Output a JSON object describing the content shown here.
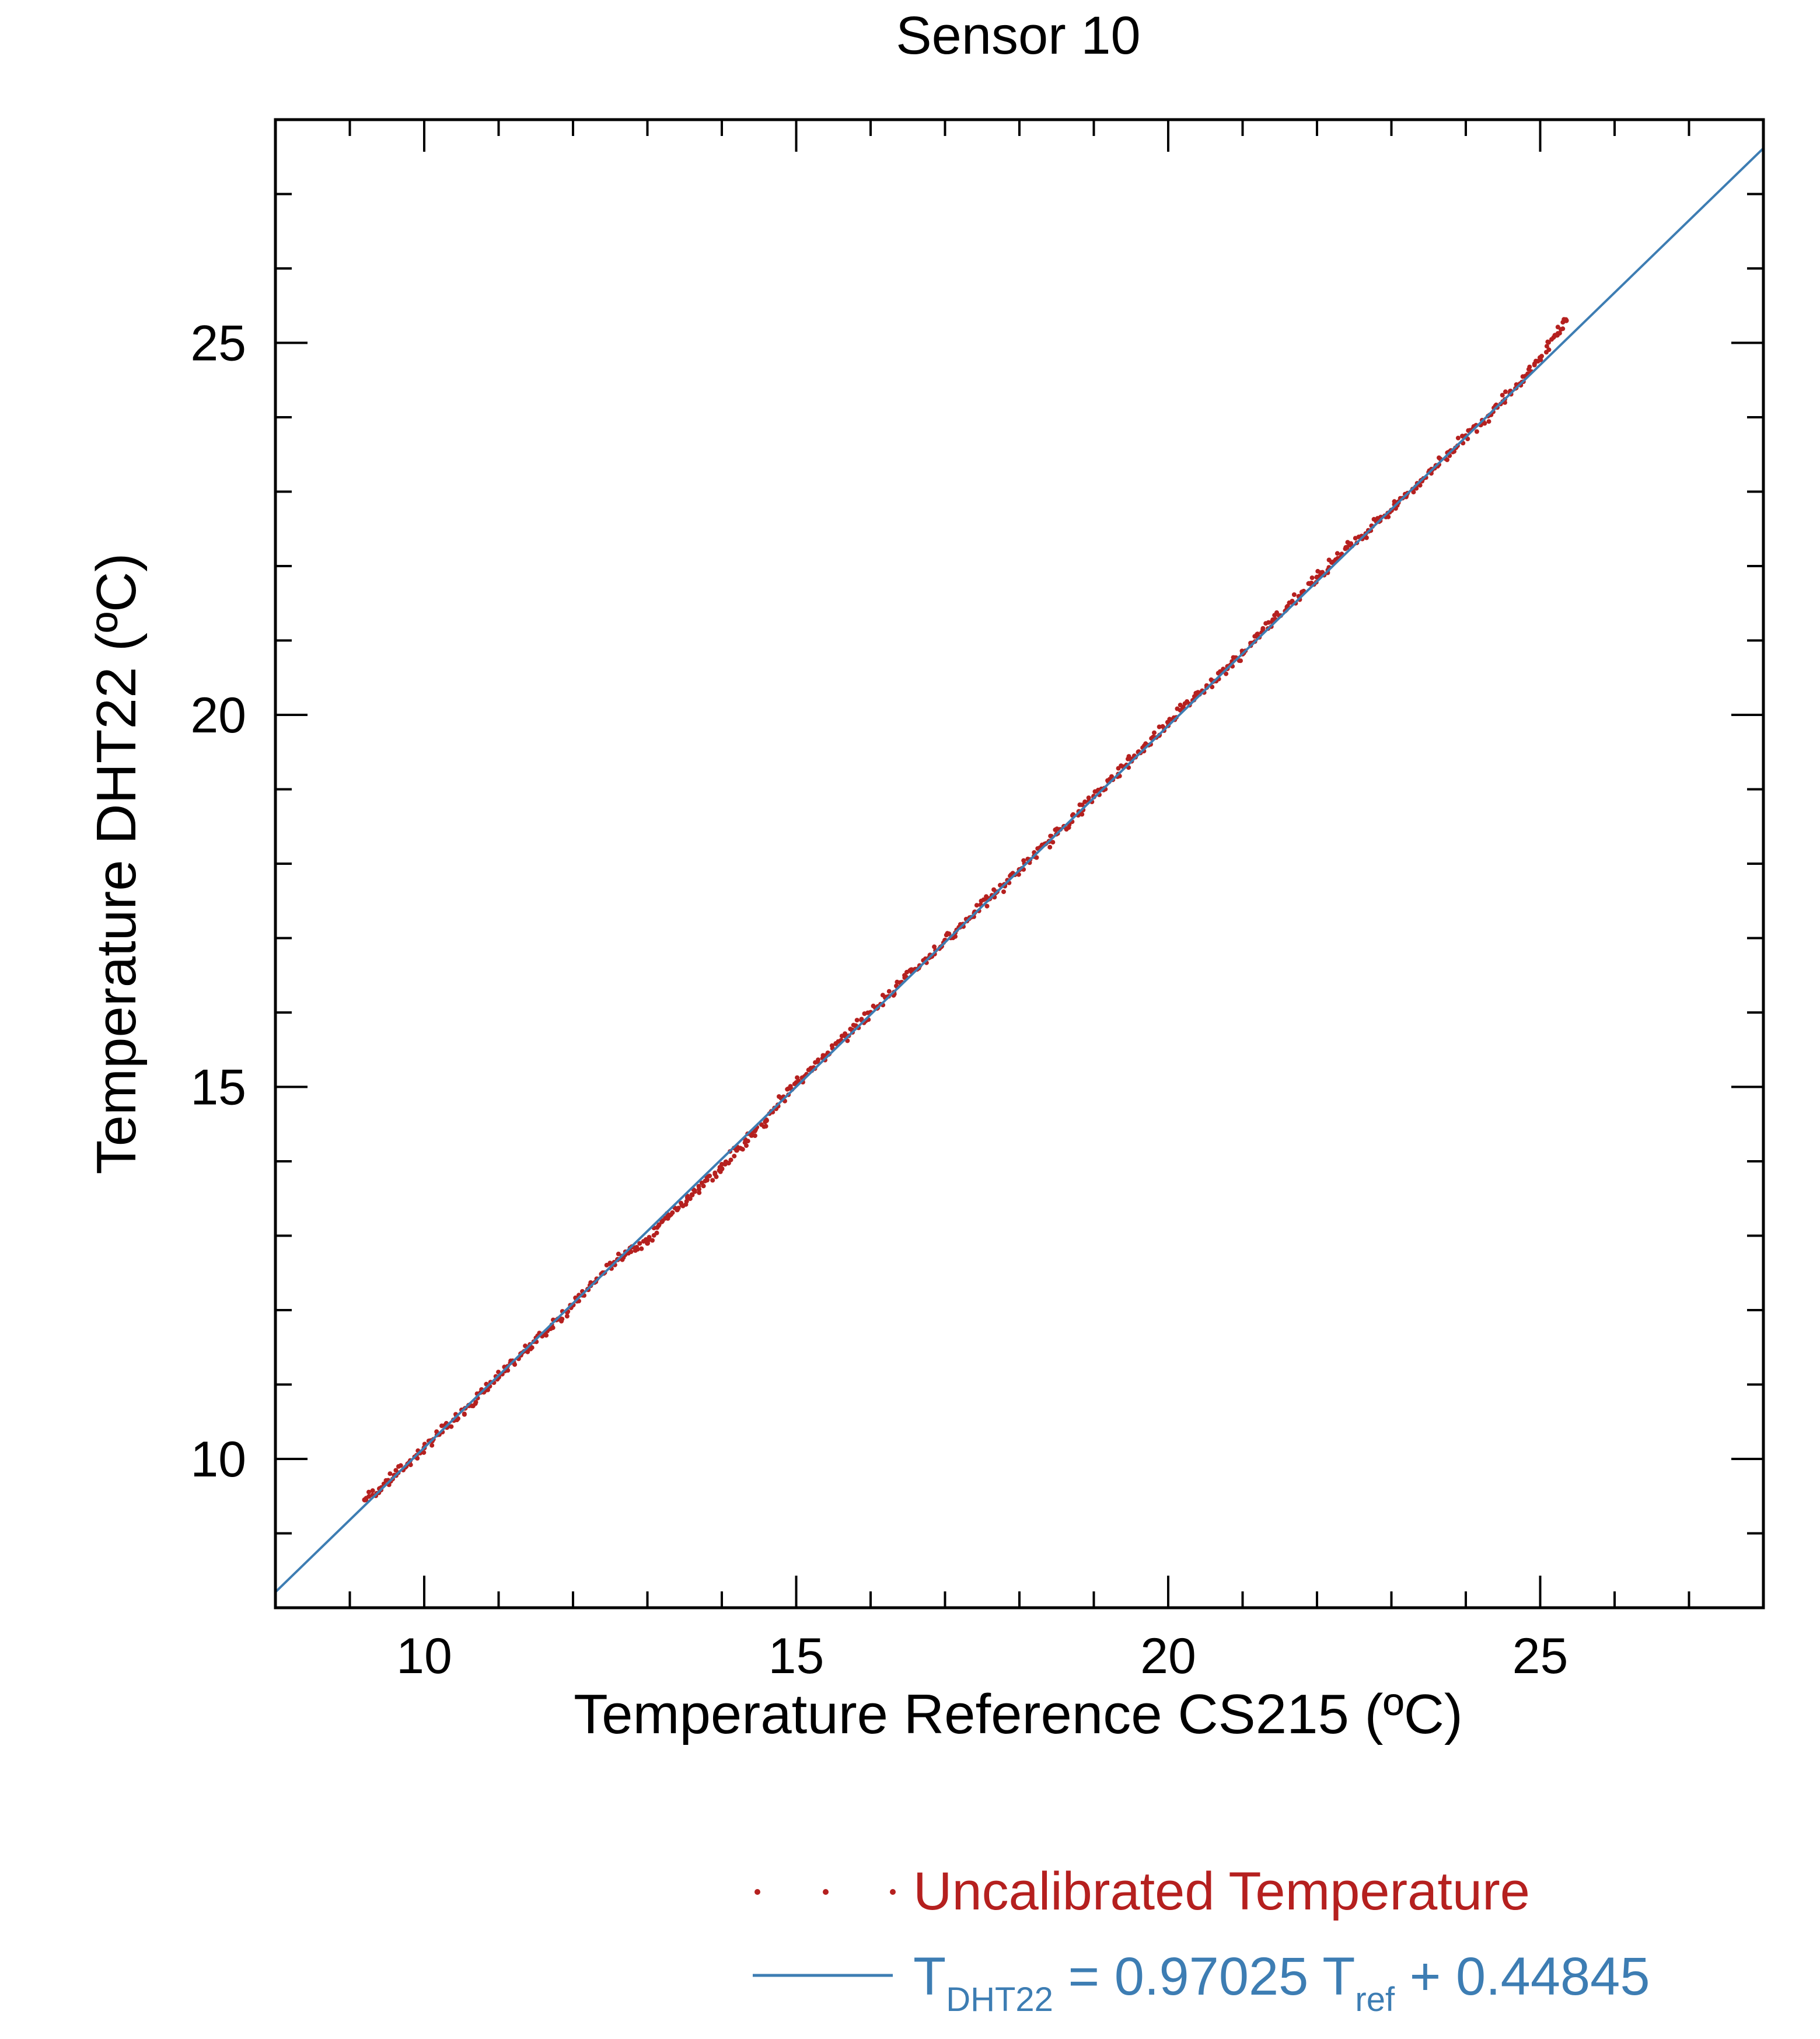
{
  "chart_data": {
    "type": "scatter",
    "title": "Sensor 10",
    "xlabel": "Temperature Reference CS215 (ºC)",
    "ylabel": "Temperature DHT22 (ºC)",
    "xlim": [
      8,
      28
    ],
    "ylim": [
      8,
      28
    ],
    "x_ticks": [
      10,
      15,
      20,
      25
    ],
    "y_ticks": [
      10,
      15,
      20,
      25
    ],
    "x_tick_labels": [
      "10",
      "15",
      "20",
      "25"
    ],
    "y_tick_labels": [
      "10",
      "15",
      "20",
      "25"
    ],
    "minor_tick_step": 1,
    "grid": false,
    "legend_position": "bottom-right, below plot",
    "series": [
      {
        "name": "Uncalibrated Temperature",
        "kind": "scatter",
        "color": "#b5201f",
        "points": [
          [
            9.2,
            9.45
          ],
          [
            9.4,
            9.6
          ],
          [
            9.6,
            9.78
          ],
          [
            9.8,
            9.95
          ],
          [
            10.0,
            10.15
          ],
          [
            10.2,
            10.33
          ],
          [
            10.4,
            10.52
          ],
          [
            10.6,
            10.72
          ],
          [
            10.8,
            10.9
          ],
          [
            11.0,
            11.1
          ],
          [
            11.2,
            11.3
          ],
          [
            11.4,
            11.5
          ],
          [
            11.6,
            11.68
          ],
          [
            11.8,
            11.88
          ],
          [
            12.0,
            12.07
          ],
          [
            12.2,
            12.28
          ],
          [
            12.4,
            12.5
          ],
          [
            12.6,
            12.68
          ],
          [
            12.8,
            12.85
          ],
          [
            13.0,
            12.9
          ],
          [
            13.2,
            13.2
          ],
          [
            13.4,
            13.35
          ],
          [
            13.6,
            13.55
          ],
          [
            13.8,
            13.75
          ],
          [
            14.0,
            13.9
          ],
          [
            14.2,
            14.15
          ],
          [
            14.4,
            14.35
          ],
          [
            14.6,
            14.55
          ],
          [
            14.8,
            14.85
          ],
          [
            15.0,
            15.05
          ],
          [
            15.2,
            15.25
          ],
          [
            15.4,
            15.42
          ],
          [
            15.6,
            15.62
          ],
          [
            15.8,
            15.82
          ],
          [
            16.0,
            16.0
          ],
          [
            16.2,
            16.2
          ],
          [
            16.4,
            16.4
          ],
          [
            16.6,
            16.58
          ],
          [
            16.8,
            16.77
          ],
          [
            17.0,
            16.97
          ],
          [
            17.2,
            17.15
          ],
          [
            17.4,
            17.35
          ],
          [
            17.6,
            17.53
          ],
          [
            17.8,
            17.72
          ],
          [
            18.0,
            17.92
          ],
          [
            18.2,
            18.1
          ],
          [
            18.4,
            18.3
          ],
          [
            18.6,
            18.5
          ],
          [
            18.8,
            18.7
          ],
          [
            19.0,
            18.9
          ],
          [
            19.2,
            19.1
          ],
          [
            19.4,
            19.3
          ],
          [
            19.6,
            19.5
          ],
          [
            19.8,
            19.7
          ],
          [
            20.0,
            19.9
          ],
          [
            20.2,
            20.1
          ],
          [
            20.4,
            20.3
          ],
          [
            20.6,
            20.45
          ],
          [
            20.8,
            20.65
          ],
          [
            21.0,
            20.82
          ],
          [
            21.2,
            21.05
          ],
          [
            21.4,
            21.25
          ],
          [
            21.6,
            21.45
          ],
          [
            21.8,
            21.65
          ],
          [
            22.0,
            21.85
          ],
          [
            22.2,
            22.05
          ],
          [
            22.4,
            22.25
          ],
          [
            22.6,
            22.4
          ],
          [
            22.8,
            22.6
          ],
          [
            23.0,
            22.75
          ],
          [
            23.2,
            22.95
          ],
          [
            23.4,
            23.15
          ],
          [
            23.6,
            23.35
          ],
          [
            23.8,
            23.55
          ],
          [
            24.0,
            23.75
          ],
          [
            24.2,
            23.9
          ],
          [
            24.4,
            24.15
          ],
          [
            24.6,
            24.35
          ],
          [
            24.8,
            24.55
          ],
          [
            25.0,
            24.8
          ],
          [
            25.2,
            25.1
          ],
          [
            25.35,
            25.3
          ]
        ]
      },
      {
        "name": "T_DHT22 = 0.97025 T_ref + 0.44845",
        "kind": "fit-line",
        "color": "#3d7db3",
        "slope": 0.97025,
        "intercept": 0.44845,
        "x_range": [
          8,
          28
        ]
      }
    ],
    "legend": {
      "scatter_label": "Uncalibrated Temperature",
      "fit_label_parts": {
        "t1": "T",
        "sub1": "DHT22",
        "eq": " =  0.97025 T",
        "sub2": "ref",
        "tail": " + 0.44845"
      }
    }
  },
  "colors": {
    "frame": "#000000",
    "scatter": "#b5201f",
    "fit_line": "#3d7db3",
    "background": "#ffffff"
  }
}
